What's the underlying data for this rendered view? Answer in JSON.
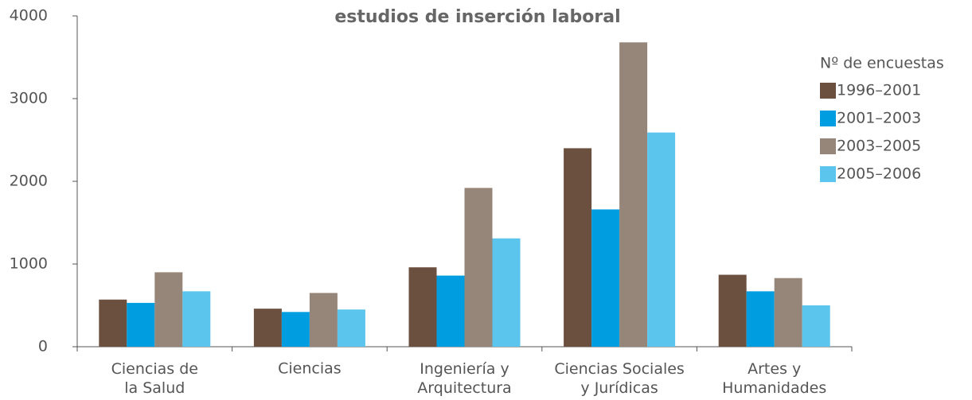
{
  "chart_data": {
    "type": "bar",
    "title": "estudios de inserción laboral",
    "legend_title": "Nº de encuestas",
    "categories": [
      "Ciencias de\nla Salud",
      "Ciencias",
      "Ingeniería y\nArquitectura",
      "Ciencias Sociales\ny Jurídicas",
      "Artes y\nHumanidades"
    ],
    "series": [
      {
        "name": "1996–2001",
        "color": "#6b4f3f",
        "values": [
          570,
          460,
          960,
          2400,
          870
        ]
      },
      {
        "name": "2001–2003",
        "color": "#009ee0",
        "values": [
          530,
          420,
          860,
          1660,
          670
        ]
      },
      {
        "name": "2003–2005",
        "color": "#968579",
        "values": [
          900,
          650,
          1920,
          3680,
          830
        ]
      },
      {
        "name": "2005–2006",
        "color": "#5bc5ee",
        "values": [
          670,
          450,
          1310,
          2590,
          500
        ]
      }
    ],
    "ylim": [
      0,
      4000
    ],
    "yticks": [
      0,
      1000,
      2000,
      3000,
      4000
    ],
    "legend": "right"
  }
}
